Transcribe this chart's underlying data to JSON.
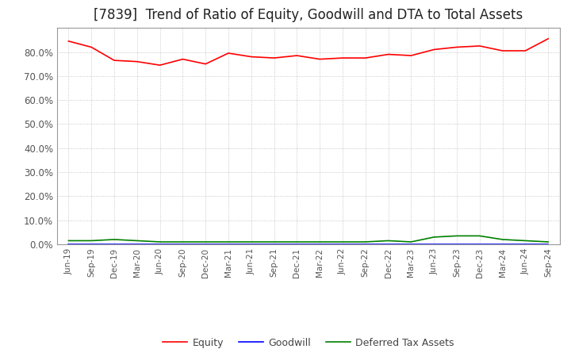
{
  "title": "[7839]  Trend of Ratio of Equity, Goodwill and DTA to Total Assets",
  "x_labels": [
    "Jun-19",
    "Sep-19",
    "Dec-19",
    "Mar-20",
    "Jun-20",
    "Sep-20",
    "Dec-20",
    "Mar-21",
    "Jun-21",
    "Sep-21",
    "Dec-21",
    "Mar-22",
    "Jun-22",
    "Sep-22",
    "Dec-22",
    "Mar-23",
    "Jun-23",
    "Sep-23",
    "Dec-23",
    "Mar-24",
    "Jun-24",
    "Sep-24"
  ],
  "equity": [
    84.5,
    82.0,
    76.5,
    76.0,
    74.5,
    77.0,
    75.0,
    79.5,
    78.0,
    77.5,
    78.5,
    77.0,
    77.5,
    77.5,
    79.0,
    78.5,
    81.0,
    82.0,
    82.5,
    80.5,
    80.5,
    85.5
  ],
  "goodwill": [
    0.0,
    0.0,
    0.0,
    0.0,
    0.0,
    0.0,
    0.0,
    0.0,
    0.0,
    0.0,
    0.0,
    0.0,
    0.0,
    0.0,
    0.0,
    0.0,
    0.0,
    0.0,
    0.0,
    0.0,
    0.0,
    0.0
  ],
  "dta": [
    1.5,
    1.5,
    2.0,
    1.5,
    1.0,
    1.0,
    1.0,
    1.0,
    1.0,
    1.0,
    1.0,
    1.0,
    1.0,
    1.0,
    1.5,
    1.0,
    3.0,
    3.5,
    3.5,
    2.0,
    1.5,
    1.0
  ],
  "equity_color": "#FF0000",
  "goodwill_color": "#0000FF",
  "dta_color": "#008000",
  "ylim": [
    0,
    90
  ],
  "yticks": [
    0,
    10,
    20,
    30,
    40,
    50,
    60,
    70,
    80
  ],
  "background_color": "#FFFFFF",
  "plot_bg_color": "#FFFFFF",
  "grid_color": "#BBBBBB",
  "title_fontsize": 12,
  "legend_labels": [
    "Equity",
    "Goodwill",
    "Deferred Tax Assets"
  ]
}
